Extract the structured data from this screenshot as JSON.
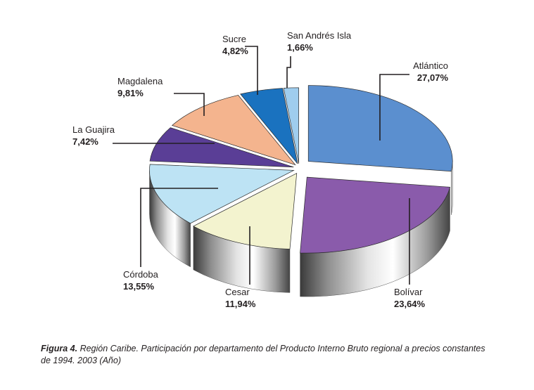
{
  "chart_data": {
    "type": "pie",
    "categories": [
      "Atlántico",
      "Bolívar",
      "Cesar",
      "Córdoba",
      "La Guajira",
      "Magdalena",
      "Sucre",
      "San Andrés Isla"
    ],
    "values": [
      27.07,
      23.64,
      11.94,
      13.55,
      7.42,
      9.81,
      4.82,
      1.66
    ],
    "value_labels": [
      "27,07%",
      "23,64%",
      "11,94%",
      "13,55%",
      "7,42%",
      "9,81%",
      "4,82%",
      "1,66%"
    ],
    "colors": [
      "#5b8fcf",
      "#8a5bab",
      "#f3f3cf",
      "#bde3f4",
      "#5a3e96",
      "#f4b48e",
      "#1a72bf",
      "#9fcdee"
    ],
    "style": "3d-exploded",
    "title": "",
    "legend": "none"
  },
  "caption": {
    "figure_number": "Figura 4.",
    "text": " Región Caribe. Participación por departamento del Producto Interno Bruto regional a precios constantes de 1994. 2003 (Año)"
  }
}
